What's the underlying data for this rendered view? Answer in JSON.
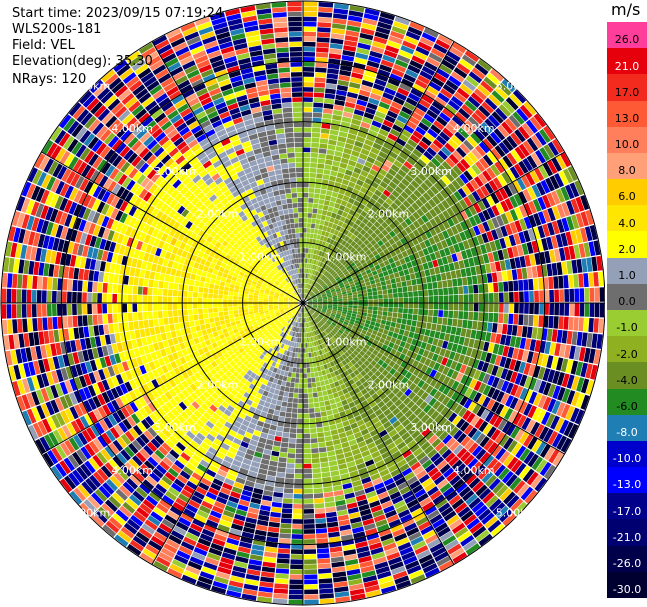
{
  "info": {
    "start_time": "Start time: 2023/09/15 07:19:24",
    "instrument": "WLS200s-181",
    "field": "Field: VEL",
    "elevation": "Elevation(deg): 35.30",
    "nrays": "NRays: 120"
  },
  "colorbar": {
    "unit": "m/s",
    "levels": [
      {
        "label": "26.0",
        "color": "#ff3d9b"
      },
      {
        "label": "21.0",
        "color": "#e6000c"
      },
      {
        "label": "17.0",
        "color": "#f32b1f"
      },
      {
        "label": "13.0",
        "color": "#ff5a36"
      },
      {
        "label": "10.0",
        "color": "#ff7e5c"
      },
      {
        "label": "8.0",
        "color": "#ffa078"
      },
      {
        "label": "6.0",
        "color": "#ffcc00"
      },
      {
        "label": "4.0",
        "color": "#ffe600"
      },
      {
        "label": "2.0",
        "color": "#ffff00"
      },
      {
        "label": "1.0",
        "color": "#94a0b8"
      },
      {
        "label": "0.0",
        "color": "#6e6e6e"
      },
      {
        "label": "-1.0",
        "color": "#9acd32"
      },
      {
        "label": "-2.0",
        "color": "#8fb020"
      },
      {
        "label": "-4.0",
        "color": "#6b8e23"
      },
      {
        "label": "-6.0",
        "color": "#228b22"
      },
      {
        "label": "-8.0",
        "color": "#1f7fb4"
      },
      {
        "label": "-10.0",
        "color": "#0000cd"
      },
      {
        "label": "-13.0",
        "color": "#0000ff"
      },
      {
        "label": "-17.0",
        "color": "#00008b"
      },
      {
        "label": "-21.0",
        "color": "#000070"
      },
      {
        "label": "-26.0",
        "color": "#00004a"
      },
      {
        "label": "-30.0",
        "color": "#000030"
      }
    ]
  },
  "chart_data": {
    "type": "heatmap",
    "projection": "polar (PPI)",
    "field": "VEL",
    "units": "m/s",
    "nrays": 120,
    "range_rings_km": [
      1.0,
      2.0,
      3.0,
      4.0,
      5.0
    ],
    "ring_labels": [
      "1.00km",
      "2.00km",
      "3.00km",
      "4.00km",
      "5.00km"
    ],
    "max_range_km": 5.0,
    "range_gate_km": 0.0833,
    "valid_data_range_km": 3.2,
    "azimuth_grid_deg": [
      0,
      30,
      60,
      90,
      120,
      150,
      180,
      210,
      240,
      270,
      300,
      330
    ],
    "velocity_pattern": {
      "west_sector": "positive (yellow / orange, about 2 to 6 m/s)",
      "east_sector": "negative (olive / green, about -1 to -6 m/s)",
      "north_south_axis": "near zero (gray)",
      "beyond_about_3_km": "noise (random colors across the full scale)"
    },
    "colorbar_min": -30.0,
    "colorbar_max": 26.0
  }
}
